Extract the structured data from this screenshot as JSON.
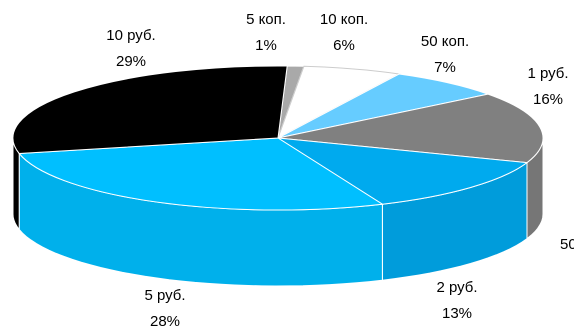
{
  "chart_data": {
    "type": "pie",
    "style": "3d-exploded-tilted",
    "title": "",
    "legend": "none",
    "start_angle_deg": -88,
    "direction": "clockwise",
    "slices": [
      {
        "category": "5 коп.",
        "value": 1,
        "label": "1%",
        "color": "#a9a9a9"
      },
      {
        "category": "10 коп.",
        "value": 6,
        "label": "6%",
        "color": "#ffffff"
      },
      {
        "category": "50 коп.",
        "value": 7,
        "label": "7%",
        "color": "#66ccff"
      },
      {
        "category": "1 руб.",
        "value": 16,
        "label": "16%",
        "color": "#808080"
      },
      {
        "category": "2 руб.",
        "value": 13,
        "label": "13%",
        "color": "#00aaee"
      },
      {
        "category": "5 руб.",
        "value": 28,
        "label": "28%",
        "color": "#00bfff"
      },
      {
        "category": "10 руб.",
        "value": 29,
        "label": "29%",
        "color": "#000000"
      }
    ],
    "cut_off_label": "50"
  }
}
